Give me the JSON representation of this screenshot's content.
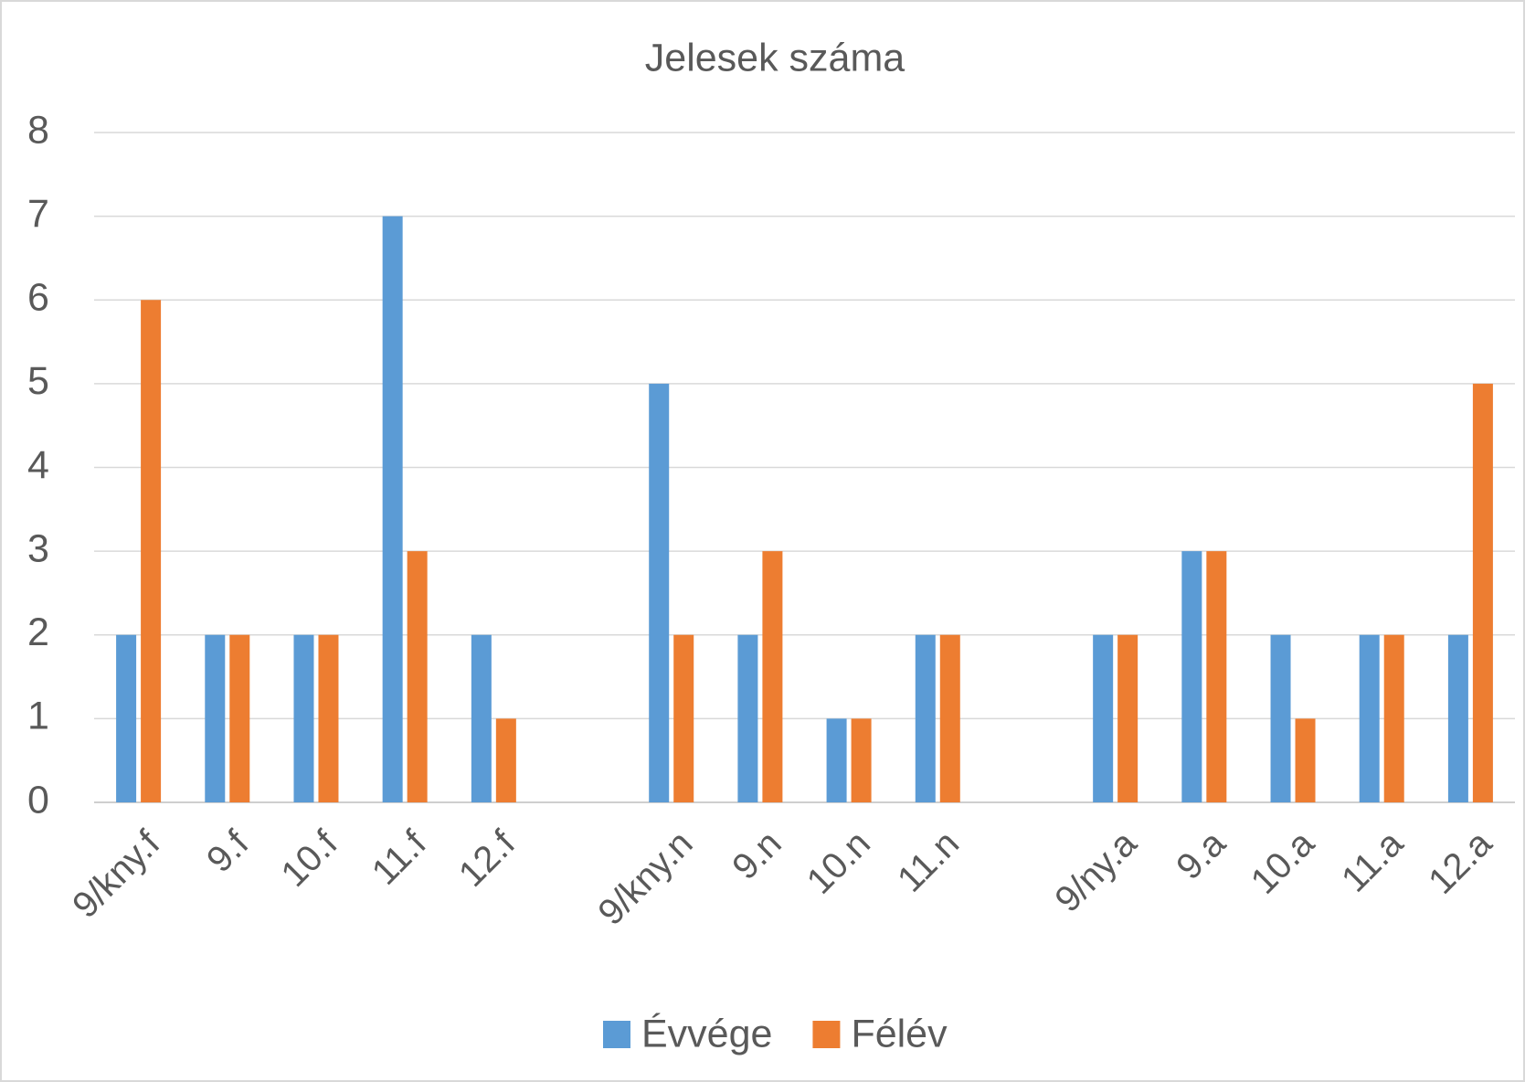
{
  "chart_data": {
    "type": "bar",
    "title": "Jelesek száma",
    "categories": [
      "9/kny.f",
      "9.f",
      "10.f",
      "11.f",
      "12.f",
      null,
      "9/kny.n",
      "9.n",
      "10.n",
      "11.n",
      null,
      "9/ny.a",
      "9.a",
      "10.a",
      "11.a",
      "12.a"
    ],
    "series": [
      {
        "name": "Évvége",
        "color": "#5b9bd5",
        "values": [
          2,
          2,
          2,
          7,
          2,
          null,
          5,
          2,
          1,
          2,
          null,
          2,
          3,
          2,
          2,
          2
        ]
      },
      {
        "name": "Félév",
        "color": "#ed7d31",
        "values": [
          6,
          2,
          2,
          3,
          1,
          null,
          2,
          3,
          1,
          2,
          null,
          2,
          3,
          1,
          2,
          5
        ]
      }
    ],
    "ylim": [
      0,
      8
    ],
    "yticks": [
      0,
      1,
      2,
      3,
      4,
      5,
      6,
      7,
      8
    ],
    "grid": true,
    "legend": "bottom"
  }
}
